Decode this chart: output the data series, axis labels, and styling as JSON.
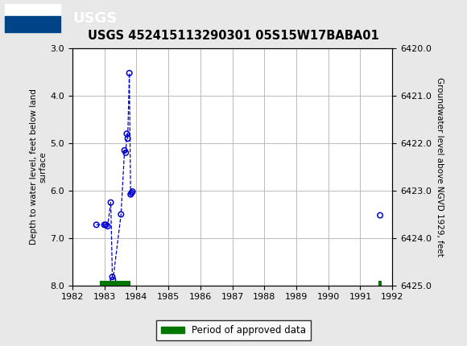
{
  "title": "USGS 452415113290301 05S15W17BABA01",
  "ylabel_left": "Depth to water level, feet below land\nsurface",
  "ylabel_right": "Groundwater level above NGVD 1929, feet",
  "xlim": [
    1982,
    1992
  ],
  "ylim_left": [
    3.0,
    8.0
  ],
  "ylim_right_top": 6425.0,
  "ylim_right_bottom": 6420.0,
  "xticks": [
    1982,
    1983,
    1984,
    1985,
    1986,
    1987,
    1988,
    1989,
    1990,
    1991,
    1992
  ],
  "yticks_left": [
    3.0,
    4.0,
    5.0,
    6.0,
    7.0,
    8.0
  ],
  "yticks_right": [
    6425.0,
    6424.0,
    6423.0,
    6422.0,
    6421.0,
    6420.0
  ],
  "data_x": [
    1982.75,
    1983.0,
    1983.05,
    1983.1,
    1983.2,
    1983.25,
    1983.27,
    1983.52,
    1983.63,
    1983.67,
    1983.7,
    1983.73,
    1983.78,
    1983.82,
    1983.85,
    1983.88,
    1991.62
  ],
  "data_y": [
    6.72,
    6.72,
    6.72,
    6.75,
    6.25,
    7.82,
    7.88,
    6.5,
    5.15,
    5.2,
    4.8,
    4.9,
    3.52,
    6.08,
    6.05,
    6.02,
    6.52
  ],
  "approved_bar_x_start": 1982.85,
  "approved_bar_x_end": 1983.82,
  "approved_bar_x_start2": 1991.57,
  "approved_bar_x_end2": 1991.68,
  "approved_color": "#007700",
  "point_color": "#0000cc",
  "line_color": "#0000cc",
  "header_color": "#006644",
  "bg_color": "#e8e8e8",
  "plot_bg": "#ffffff",
  "grid_color": "#bbbbbb",
  "legend_label": "Period of approved data"
}
